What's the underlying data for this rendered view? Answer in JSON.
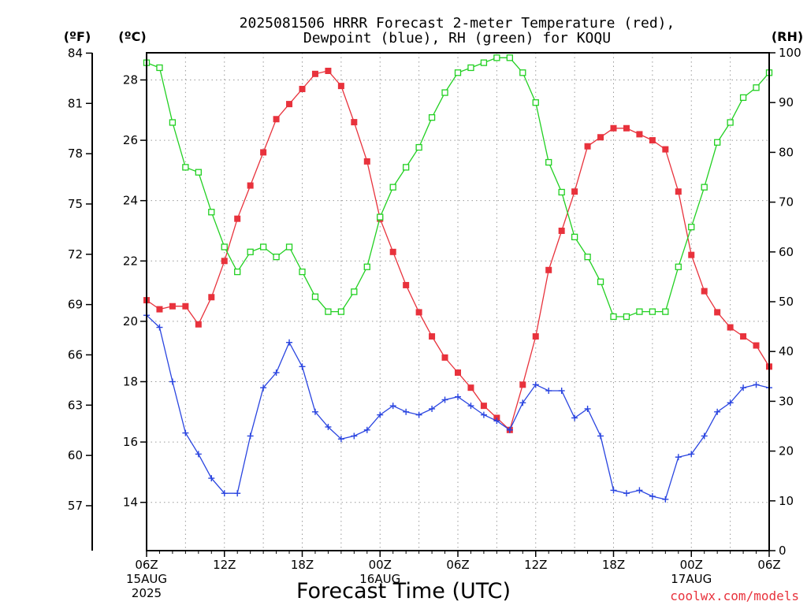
{
  "title_line1": "2025081506 HRRR Forecast 2-meter Temperature (red),",
  "title_line2": "Dewpoint (blue), RH (green) for KOQU",
  "credit": "coolwx.com/models",
  "colors": {
    "temperature": "#e8323c",
    "dewpoint": "#2a45e0",
    "rh": "#22d022",
    "grid": "#9a9a9a",
    "credit": "#e8323c"
  },
  "chart_data": {
    "type": "line",
    "xlabel": "Forecast Time (UTC)",
    "x_hours_utc": [
      6,
      7,
      8,
      9,
      10,
      11,
      12,
      13,
      14,
      15,
      16,
      17,
      18,
      19,
      20,
      21,
      22,
      23,
      0,
      1,
      2,
      3,
      4,
      5,
      6,
      7,
      8,
      9,
      10,
      11,
      12,
      13,
      14,
      15,
      16,
      17,
      18,
      19,
      20,
      21,
      22,
      23,
      0,
      1,
      2,
      3,
      4,
      5,
      6
    ],
    "x_range": [
      "2025-08-15 06Z",
      "2025-08-17 06Z"
    ],
    "x_ticks": [
      {
        "label": "06Z",
        "sub1": "15AUG",
        "sub2": "2025"
      },
      {
        "label": "12Z",
        "sub1": "",
        "sub2": ""
      },
      {
        "label": "18Z",
        "sub1": "",
        "sub2": ""
      },
      {
        "label": "00Z",
        "sub1": "16AUG",
        "sub2": ""
      },
      {
        "label": "06Z",
        "sub1": "",
        "sub2": ""
      },
      {
        "label": "12Z",
        "sub1": "",
        "sub2": ""
      },
      {
        "label": "18Z",
        "sub1": "",
        "sub2": ""
      },
      {
        "label": "00Z",
        "sub1": "17AUG",
        "sub2": ""
      },
      {
        "label": "06Z",
        "sub1": "",
        "sub2": ""
      }
    ],
    "y_axes": {
      "fahrenheit": {
        "label": "(ºF)",
        "ticks": [
          "84",
          "81",
          "78",
          "75",
          "72",
          "69",
          "66",
          "63",
          "60",
          "57"
        ]
      },
      "celsius": {
        "label": "(ºC)",
        "ylim": [
          12.4,
          28.9
        ],
        "ticks": [
          "28",
          "26",
          "24",
          "22",
          "20",
          "18",
          "16",
          "14"
        ]
      },
      "rh": {
        "label": "(RH)",
        "ylim": [
          0,
          100
        ],
        "ticks": [
          "100",
          "90",
          "80",
          "70",
          "60",
          "50",
          "40",
          "30",
          "20",
          "10",
          "0"
        ]
      }
    },
    "grid": true,
    "series": [
      {
        "name": "Temperature",
        "units": "C",
        "marker": "filled-square",
        "values": [
          20.7,
          20.4,
          20.5,
          20.5,
          19.9,
          20.8,
          22.0,
          23.4,
          24.5,
          25.6,
          26.7,
          27.2,
          27.7,
          28.2,
          28.3,
          27.8,
          26.6,
          25.3,
          23.4,
          22.3,
          21.2,
          20.3,
          19.5,
          18.8,
          18.3,
          17.8,
          17.2,
          16.8,
          16.4,
          17.9,
          19.5,
          21.7,
          23.0,
          24.3,
          25.8,
          26.1,
          26.4,
          26.4,
          26.2,
          26.0,
          25.7,
          24.3,
          22.2,
          21.0,
          20.3,
          19.8,
          19.5,
          19.2,
          18.5
        ]
      },
      {
        "name": "Dewpoint",
        "units": "C",
        "marker": "plus",
        "values": [
          20.2,
          19.8,
          18.0,
          16.3,
          15.6,
          14.8,
          14.3,
          14.3,
          16.2,
          17.8,
          18.3,
          19.3,
          18.5,
          17.0,
          16.5,
          16.1,
          16.2,
          16.4,
          16.9,
          17.2,
          17.0,
          16.9,
          17.1,
          17.4,
          17.5,
          17.2,
          16.9,
          16.7,
          16.4,
          17.3,
          17.9,
          17.7,
          17.7,
          16.8,
          17.1,
          16.2,
          14.4,
          14.3,
          14.4,
          14.2,
          14.1,
          15.5,
          15.6,
          16.2,
          17.0,
          17.3,
          17.8,
          17.9,
          17.8
        ]
      },
      {
        "name": "RH",
        "units": "%",
        "marker": "open-square",
        "values": [
          98,
          97,
          86,
          77,
          76,
          68,
          61,
          56,
          60,
          61,
          59,
          61,
          56,
          51,
          48,
          48,
          52,
          57,
          67,
          73,
          77,
          81,
          87,
          92,
          96,
          97,
          98,
          99,
          99,
          96,
          90,
          78,
          72,
          63,
          59,
          54,
          47,
          47,
          48,
          48,
          48,
          57,
          65,
          73,
          82,
          86,
          91,
          93,
          96
        ]
      }
    ]
  }
}
